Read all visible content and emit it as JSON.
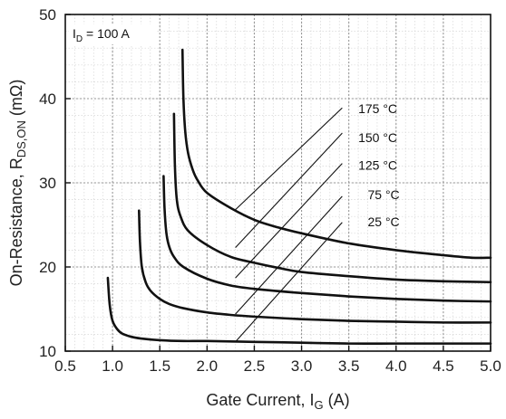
{
  "chart_data": {
    "type": "line",
    "xlabel": {
      "main": "Gate Current, I",
      "sub": "G",
      "unit": " (A)"
    },
    "ylabel": {
      "main": "On-Resistance, R",
      "sub": "DS,ON",
      "unit": " (mΩ)"
    },
    "annotation": {
      "main": "I",
      "sub": "D",
      "rest": " = 100 A"
    },
    "xlim": [
      0.5,
      5.0
    ],
    "ylim": [
      10,
      50
    ],
    "x_ticks": [
      "0.5",
      "1.0",
      "1.5",
      "2.0",
      "2.5",
      "3.0",
      "3.5",
      "4.0",
      "4.5",
      "5.0"
    ],
    "y_ticks": [
      "10",
      "20",
      "30",
      "40",
      "50"
    ],
    "grid": true,
    "series": [
      {
        "name": "25 °C",
        "x": [
          0.95,
          0.97,
          1.0,
          1.05,
          1.1,
          1.2,
          1.3,
          1.5,
          1.75,
          2.0,
          2.5,
          3.0,
          3.5,
          4.0,
          4.5,
          5.0
        ],
        "y": [
          18.7,
          15.5,
          13.6,
          12.6,
          12.1,
          11.7,
          11.5,
          11.3,
          11.2,
          11.2,
          11.1,
          11.0,
          10.9,
          10.9,
          10.9,
          10.9
        ]
      },
      {
        "name": "75 °C",
        "x": [
          1.28,
          1.29,
          1.31,
          1.35,
          1.4,
          1.5,
          1.6,
          1.75,
          2.0,
          2.25,
          2.5,
          3.0,
          3.5,
          4.0,
          4.5,
          5.0
        ],
        "y": [
          26.7,
          23.0,
          20.0,
          18.2,
          17.2,
          16.2,
          15.6,
          15.1,
          14.6,
          14.3,
          14.1,
          13.8,
          13.6,
          13.5,
          13.4,
          13.4
        ]
      },
      {
        "name": "125 °C",
        "x": [
          1.54,
          1.55,
          1.57,
          1.6,
          1.65,
          1.75,
          2.0,
          2.25,
          2.5,
          3.0,
          3.5,
          4.0,
          4.5,
          5.0
        ],
        "y": [
          30.8,
          27.0,
          24.0,
          22.4,
          21.2,
          20.0,
          18.6,
          17.8,
          17.4,
          16.9,
          16.5,
          16.2,
          16.0,
          15.9
        ]
      },
      {
        "name": "150 °C",
        "x": [
          1.65,
          1.66,
          1.68,
          1.72,
          1.8,
          2.0,
          2.25,
          2.5,
          2.75,
          3.0,
          3.5,
          4.0,
          4.5,
          5.0
        ],
        "y": [
          38.2,
          32.0,
          28.0,
          26.0,
          24.3,
          22.6,
          21.2,
          20.5,
          19.9,
          19.4,
          18.9,
          18.5,
          18.3,
          18.2
        ]
      },
      {
        "name": "175 °C",
        "x": [
          1.74,
          1.75,
          1.77,
          1.8,
          1.85,
          1.9,
          2.0,
          2.25,
          2.5,
          2.75,
          3.0,
          3.5,
          4.0,
          4.5,
          4.8,
          5.0
        ],
        "y": [
          45.8,
          40.0,
          36.0,
          33.5,
          31.5,
          30.3,
          28.8,
          27.0,
          25.6,
          24.7,
          24.0,
          22.8,
          22.0,
          21.4,
          21.1,
          21.1
        ]
      }
    ],
    "label_leaders": [
      {
        "label": "175 °C",
        "from": [
          2.3,
          26.8
        ],
        "to": [
          3.43,
          38.9
        ],
        "text_at": [
          3.6,
          38.8
        ]
      },
      {
        "label": "150 °C",
        "from": [
          2.3,
          22.3
        ],
        "to": [
          3.43,
          35.9
        ],
        "text_at": [
          3.6,
          35.4
        ]
      },
      {
        "label": "125 °C",
        "from": [
          2.3,
          18.7
        ],
        "to": [
          3.43,
          32.3
        ],
        "text_at": [
          3.6,
          32.1
        ]
      },
      {
        "label": "75 °C",
        "from": [
          2.3,
          14.4
        ],
        "to": [
          3.43,
          28.4
        ],
        "text_at": [
          3.7,
          28.6
        ]
      },
      {
        "label": "25 °C",
        "from": [
          2.3,
          11.1
        ],
        "to": [
          3.43,
          25.3
        ],
        "text_at": [
          3.7,
          25.4
        ]
      }
    ]
  }
}
